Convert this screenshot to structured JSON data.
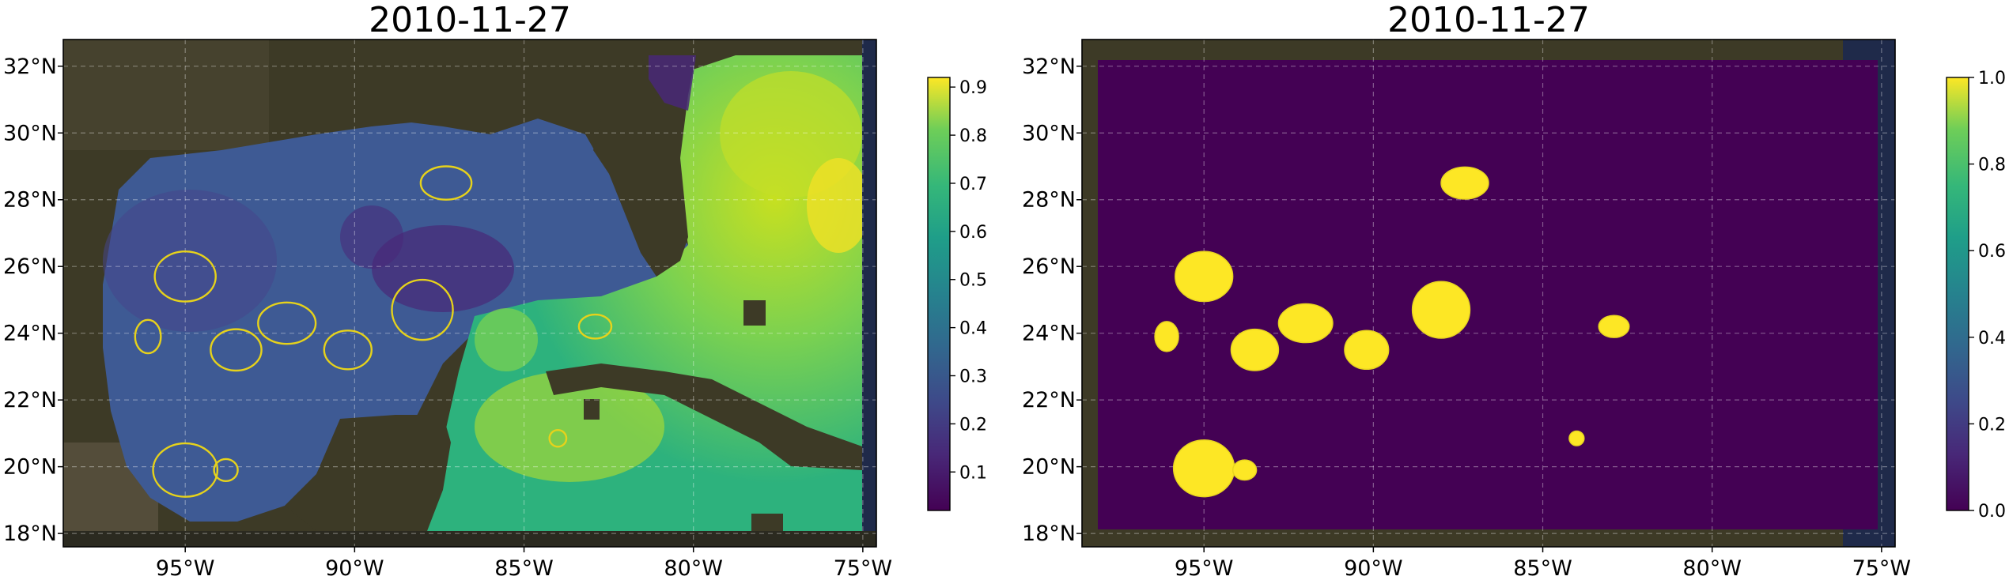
{
  "chart_data": [
    {
      "type": "heatmap",
      "title": "2010-11-27",
      "x_ticks": [
        "95°W",
        "90°W",
        "85°W",
        "80°W",
        "75°W"
      ],
      "x_tick_values": [
        -95,
        -90,
        -85,
        -80,
        -75
      ],
      "y_ticks": [
        "18°N",
        "20°N",
        "22°N",
        "24°N",
        "26°N",
        "28°N",
        "30°N",
        "32°N"
      ],
      "y_tick_values": [
        18,
        20,
        22,
        24,
        26,
        28,
        30,
        32
      ],
      "xlim": [
        -98.6,
        -74.6
      ],
      "ylim": [
        17.6,
        32.8
      ],
      "grid": true,
      "colormap": "viridis",
      "colorbar": {
        "ticks": [
          "0.1",
          "0.2",
          "0.3",
          "0.4",
          "0.5",
          "0.6",
          "0.7",
          "0.8",
          "0.9"
        ],
        "range": [
          0.02,
          0.92
        ]
      },
      "contours": [
        {
          "lon": -87.3,
          "lat": 28.5,
          "rx": 0.75,
          "ry": 0.5
        },
        {
          "lon": -95.0,
          "lat": 25.7,
          "rx": 0.9,
          "ry": 0.75
        },
        {
          "lon": -96.1,
          "lat": 23.9,
          "rx": 0.38,
          "ry": 0.5
        },
        {
          "lon": -93.5,
          "lat": 23.5,
          "rx": 0.75,
          "ry": 0.62
        },
        {
          "lon": -92.0,
          "lat": 24.3,
          "rx": 0.85,
          "ry": 0.62
        },
        {
          "lon": -90.2,
          "lat": 23.5,
          "rx": 0.7,
          "ry": 0.58
        },
        {
          "lon": -88.0,
          "lat": 24.7,
          "rx": 0.9,
          "ry": 0.9
        },
        {
          "lon": -82.9,
          "lat": 24.2,
          "rx": 0.48,
          "ry": 0.36
        },
        {
          "lon": -95.0,
          "lat": 19.9,
          "rx": 0.95,
          "ry": 0.8
        },
        {
          "lon": -93.8,
          "lat": 19.9,
          "rx": 0.35,
          "ry": 0.33
        },
        {
          "lon": -84.0,
          "lat": 20.85,
          "rx": 0.25,
          "ry": 0.25
        }
      ]
    },
    {
      "type": "heatmap",
      "title": "2010-11-27",
      "x_ticks": [
        "95°W",
        "90°W",
        "85°W",
        "80°W",
        "75°W"
      ],
      "x_tick_values": [
        -95,
        -90,
        -85,
        -80,
        -75
      ],
      "y_ticks": [
        "18°N",
        "20°N",
        "22°N",
        "24°N",
        "26°N",
        "28°N",
        "30°N",
        "32°N"
      ],
      "y_tick_values": [
        18,
        20,
        22,
        24,
        26,
        28,
        30,
        32
      ],
      "xlim": [
        -98.6,
        -74.6
      ],
      "ylim": [
        17.6,
        32.8
      ],
      "grid": true,
      "colormap": "viridis",
      "colorbar": {
        "ticks": [
          "0.0",
          "0.2",
          "0.4",
          "0.6",
          "0.8",
          "1.0"
        ],
        "range": [
          0.0,
          1.0
        ]
      },
      "background_value": 0,
      "mask_value": 1,
      "blobs": [
        {
          "lon": -87.3,
          "lat": 28.5,
          "rx": 0.7,
          "ry": 0.48
        },
        {
          "lon": -95.0,
          "lat": 25.7,
          "rx": 0.85,
          "ry": 0.75
        },
        {
          "lon": -96.1,
          "lat": 23.9,
          "rx": 0.35,
          "ry": 0.45
        },
        {
          "lon": -93.5,
          "lat": 23.5,
          "rx": 0.7,
          "ry": 0.62
        },
        {
          "lon": -92.0,
          "lat": 24.3,
          "rx": 0.8,
          "ry": 0.58
        },
        {
          "lon": -90.2,
          "lat": 23.5,
          "rx": 0.65,
          "ry": 0.58
        },
        {
          "lon": -88.0,
          "lat": 24.7,
          "rx": 0.85,
          "ry": 0.85
        },
        {
          "lon": -82.9,
          "lat": 24.2,
          "rx": 0.45,
          "ry": 0.33
        },
        {
          "lon": -95.0,
          "lat": 19.95,
          "rx": 0.9,
          "ry": 0.85
        },
        {
          "lon": -93.8,
          "lat": 19.9,
          "rx": 0.35,
          "ry": 0.3
        },
        {
          "lon": -84.0,
          "lat": 20.85,
          "rx": 0.22,
          "ry": 0.22
        }
      ]
    }
  ]
}
